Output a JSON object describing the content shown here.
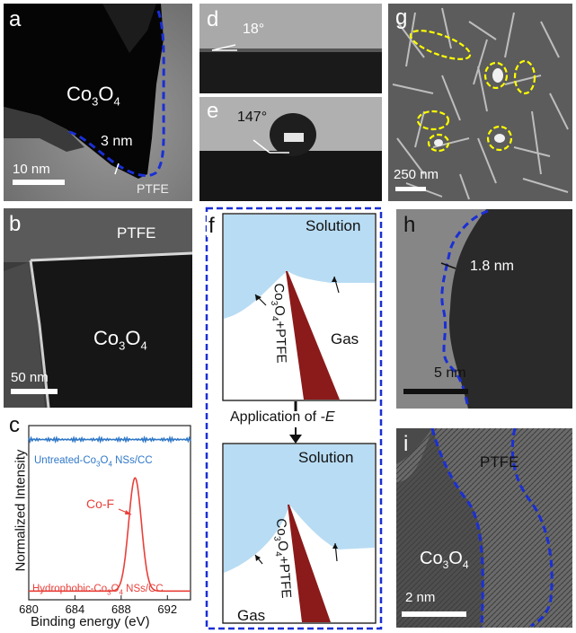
{
  "colors": {
    "dashed_blue": "#1a2fd6",
    "solution": "#b8dcf3",
    "gas_wedge": "#8b1a1a",
    "spectrum_red": "#e8403a",
    "spectrum_blue": "#2f78c8",
    "circle_yellow": "#ffff00"
  },
  "panel_a": {
    "label": "a",
    "material": "Co3O4",
    "thickness": "3 nm",
    "scale": "10 nm",
    "coating": "PTFE"
  },
  "panel_b": {
    "label": "b",
    "coating": "PTFE",
    "material": "Co3O4",
    "scale": "50 nm"
  },
  "panel_c": {
    "label": "c",
    "ylabel": "Normalized Intensity",
    "xlabel": "Binding energy (eV)",
    "top_trace": "Untreated-Co3O4 NSs/CC",
    "peak_label": "Co-F",
    "bottom_trace": "Hydrophobic-Co3O4 NSs/CC",
    "xticks": [
      "680",
      "684",
      "688",
      "692"
    ]
  },
  "panel_d": {
    "label": "d",
    "angle": "18°"
  },
  "panel_e": {
    "label": "e",
    "angle": "147°"
  },
  "panel_f": {
    "label": "f",
    "solution": "Solution",
    "gas": "Gas",
    "electrode": "Co3O4+PTFE",
    "step_prefix": "Application of",
    "step_var": "-E"
  },
  "panel_g": {
    "label": "g",
    "scale": "250 nm"
  },
  "panel_h": {
    "label": "h",
    "thickness": "1.8 nm",
    "scale": "5 nm"
  },
  "panel_i": {
    "label": "i",
    "coating": "PTFE",
    "material": "Co3O4",
    "scale": "2 nm"
  },
  "chart_data": {
    "type": "line",
    "xlabel": "Binding energy (eV)",
    "ylabel": "Normalized Intensity",
    "xlim": [
      680,
      694
    ],
    "x_ticks": [
      680,
      684,
      688,
      692
    ],
    "series": [
      {
        "name": "Untreated-Co3O4 NSs/CC",
        "x": [
          680,
          684,
          688,
          689.5,
          692,
          694
        ],
        "y": [
          0.92,
          0.92,
          0.92,
          0.92,
          0.92,
          0.92
        ]
      },
      {
        "name": "Hydrophobic-Co3O4 NSs/CC",
        "x": [
          680,
          684,
          687,
          688,
          689,
          689.3,
          690,
          691,
          692,
          694
        ],
        "y": [
          0.05,
          0.05,
          0.06,
          0.25,
          0.68,
          0.7,
          0.45,
          0.08,
          0.05,
          0.05
        ]
      }
    ],
    "annotations": [
      "Co-F"
    ]
  }
}
